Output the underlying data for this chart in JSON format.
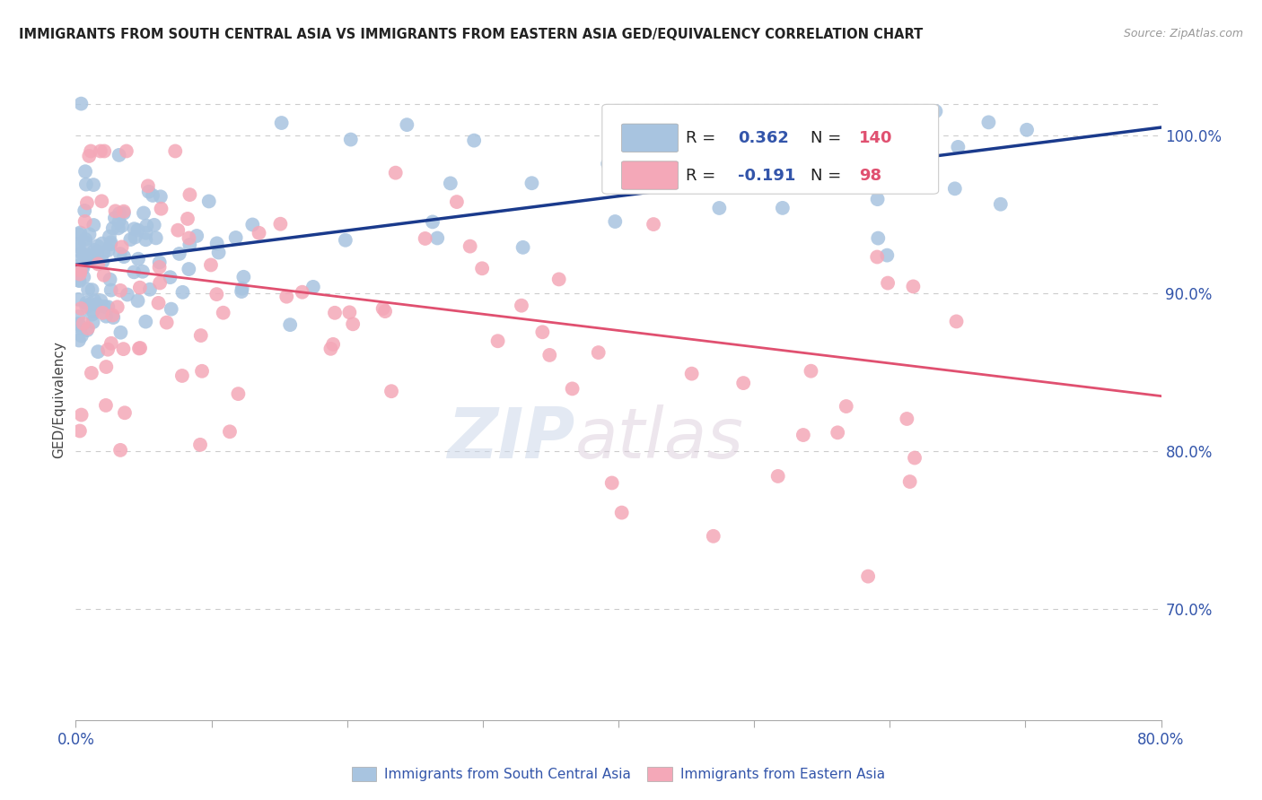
{
  "title": "IMMIGRANTS FROM SOUTH CENTRAL ASIA VS IMMIGRANTS FROM EASTERN ASIA GED/EQUIVALENCY CORRELATION CHART",
  "source": "Source: ZipAtlas.com",
  "ylabel": "GED/Equivalency",
  "right_yticks": [
    70.0,
    80.0,
    90.0,
    100.0
  ],
  "blue_R": 0.362,
  "blue_N": 140,
  "pink_R": -0.191,
  "pink_N": 98,
  "blue_label": "Immigrants from South Central Asia",
  "pink_label": "Immigrants from Eastern Asia",
  "blue_color": "#a8c4e0",
  "pink_color": "#f4a8b8",
  "blue_line_color": "#1a3a8c",
  "pink_line_color": "#e05070",
  "watermark_zip": "ZIP",
  "watermark_atlas": "atlas",
  "background_color": "#ffffff",
  "grid_color": "#cccccc",
  "title_color": "#222222",
  "axis_label_color": "#3355aa",
  "blue_trend_y0": 91.8,
  "blue_trend_y1": 100.5,
  "pink_trend_y0": 91.8,
  "pink_trend_y1": 83.5,
  "xmin": 0.0,
  "xmax": 80.0,
  "ymin": 63.0,
  "ymax": 103.5
}
